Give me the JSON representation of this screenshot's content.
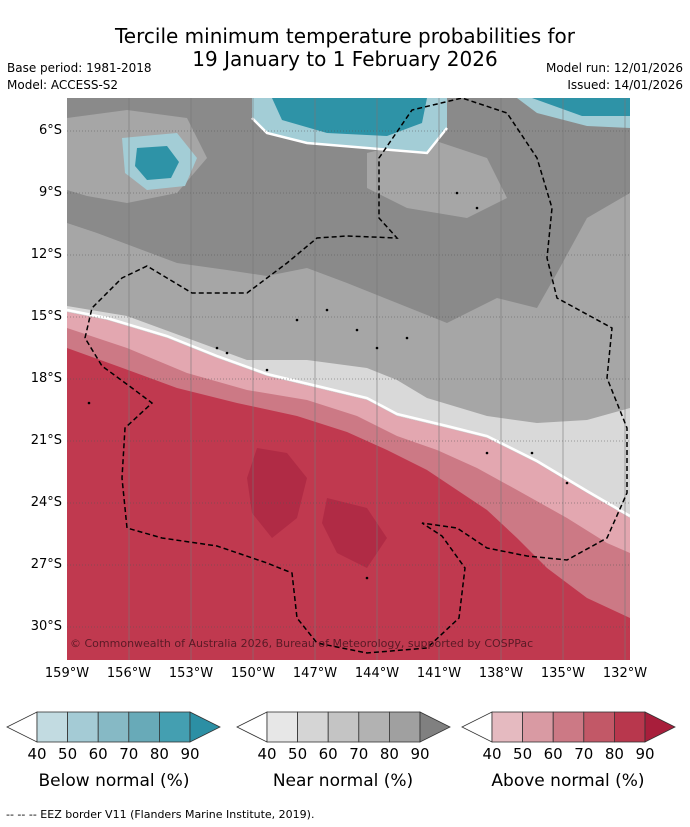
{
  "header": {
    "title_line1": "Tercile minimum temperature probabilities for",
    "title_line2": "19 January to 1 February 2026",
    "base_period": "Base period: 1981-2018",
    "model": "Model: ACCESS-S2",
    "model_run": "Model run: 12/01/2026",
    "issued": "Issued: 14/01/2026"
  },
  "map": {
    "latitude_labels": [
      "6°S",
      "9°S",
      "12°S",
      "15°S",
      "18°S",
      "21°S",
      "24°S",
      "27°S",
      "30°S"
    ],
    "longitude_labels": [
      "159°W",
      "156°W",
      "153°W",
      "150°W",
      "147°W",
      "144°W",
      "141°W",
      "138°W",
      "135°W",
      "132°W"
    ],
    "credit": "© Commonwealth of Australia 2026, Bureau of Meteorology, supported by COSPPac",
    "region_colors": {
      "below_normal_strong": "#2e93a7",
      "below_normal_weak": "#a3cdd6",
      "near_normal_dark": "#8a8a8a",
      "near_normal_mid": "#a6a6a6",
      "near_normal_light": "#d9d9d9",
      "above_normal_strong": "#c0394f",
      "above_normal_weak": "#e3a7b0"
    }
  },
  "legend": {
    "tick_values": [
      "40",
      "50",
      "60",
      "70",
      "80",
      "90"
    ],
    "below": {
      "title": "Below normal (%)",
      "colors": [
        "#ffffff",
        "#c2dbe1",
        "#a4cbd5",
        "#86b9c5",
        "#68aab8",
        "#449fb1",
        "#2c8fa4"
      ]
    },
    "near": {
      "title": "Near normal (%)",
      "colors": [
        "#ffffff",
        "#e7e7e7",
        "#d5d5d5",
        "#c4c4c4",
        "#b2b2b2",
        "#a0a0a0",
        "#808080"
      ]
    },
    "above": {
      "title": "Above normal (%)",
      "colors": [
        "#ffffff",
        "#e5bac0",
        "#d99aa3",
        "#cc7985",
        "#c25867",
        "#b8374d",
        "#a81e3b"
      ]
    }
  },
  "footnote": "-- -- -- EEZ border V11 (Flanders Marine Institute, 2019)."
}
